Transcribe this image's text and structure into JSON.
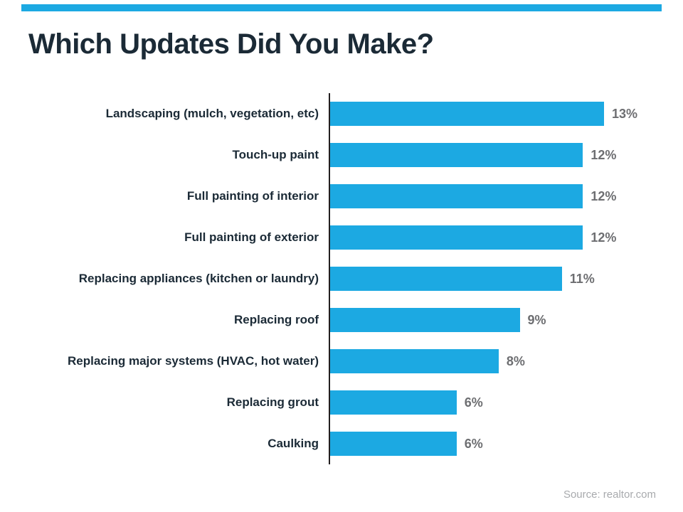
{
  "title": "Which Updates Did You Make?",
  "source": "Source: realtor.com",
  "colors": {
    "accent": "#1ca9e2",
    "title_text": "#1b2a36",
    "value_label": "#6d6e71",
    "axis": "#231f20",
    "source_text": "#a8aaad"
  },
  "chart_data": {
    "type": "bar",
    "orientation": "horizontal",
    "title": "Which Updates Did You Make?",
    "categories": [
      "Landscaping (mulch, vegetation, etc)",
      "Touch-up paint",
      "Full painting of interior",
      "Full painting of exterior",
      "Replacing appliances (kitchen or laundry)",
      "Replacing roof",
      "Replacing major systems (HVAC, hot water)",
      "Replacing grout",
      "Caulking"
    ],
    "values": [
      13,
      12,
      12,
      12,
      11,
      9,
      8,
      6,
      6
    ],
    "value_labels": [
      "13%",
      "12%",
      "12%",
      "12%",
      "11%",
      "9%",
      "8%",
      "6%",
      "6%"
    ],
    "unit": "%",
    "xlim": [
      0,
      13
    ],
    "grid": false,
    "legend": false,
    "annotation": "Source: realtor.com"
  }
}
